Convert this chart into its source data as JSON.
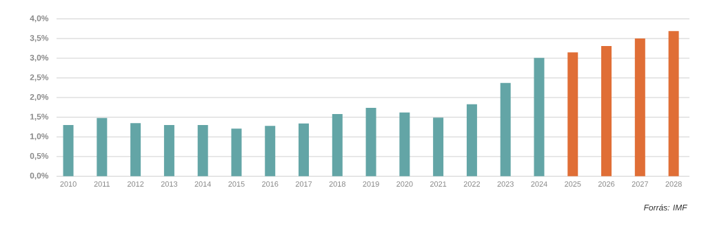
{
  "chart_data": {
    "type": "bar",
    "categories": [
      "2010",
      "2011",
      "2012",
      "2013",
      "2014",
      "2015",
      "2016",
      "2017",
      "2018",
      "2019",
      "2020",
      "2021",
      "2022",
      "2023",
      "2024",
      "2025",
      "2026",
      "2027",
      "2028"
    ],
    "values": [
      1.3,
      1.48,
      1.35,
      1.3,
      1.3,
      1.21,
      1.28,
      1.34,
      1.58,
      1.74,
      1.62,
      1.49,
      1.83,
      2.37,
      3.01,
      3.15,
      3.31,
      3.5,
      3.69
    ],
    "colors": [
      "#63a5a6",
      "#63a5a6",
      "#63a5a6",
      "#63a5a6",
      "#63a5a6",
      "#63a5a6",
      "#63a5a6",
      "#63a5a6",
      "#63a5a6",
      "#63a5a6",
      "#63a5a6",
      "#63a5a6",
      "#63a5a6",
      "#63a5a6",
      "#63a5a6",
      "#e06e36",
      "#e06e36",
      "#e06e36",
      "#e06e36"
    ],
    "ylim": [
      0,
      4.0
    ],
    "yticks": [
      {
        "value": 0,
        "label": "0,0%"
      },
      {
        "value": 0.5,
        "label": "0,5%"
      },
      {
        "value": 1.0,
        "label": "1,0%"
      },
      {
        "value": 1.5,
        "label": "1,5%"
      },
      {
        "value": 2.0,
        "label": "2,0%"
      },
      {
        "value": 2.5,
        "label": "2,5%"
      },
      {
        "value": 3.0,
        "label": "3,0%"
      },
      {
        "value": 3.5,
        "label": "3,5%"
      },
      {
        "value": 4.0,
        "label": "4,0%"
      }
    ],
    "grid": "y",
    "annotations": [
      "Forrás: IMF"
    ]
  }
}
